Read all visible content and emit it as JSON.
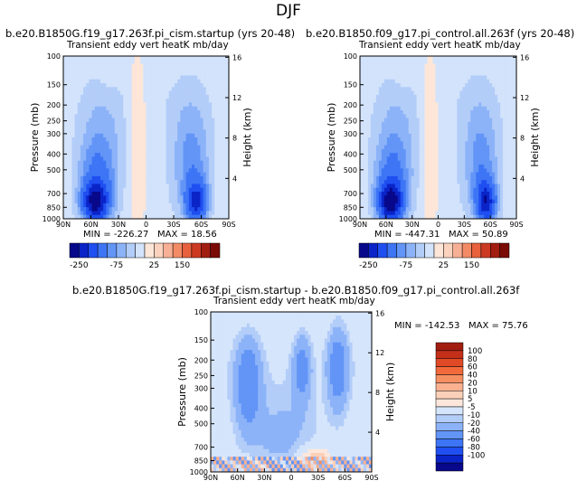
{
  "figure": {
    "season": "DJF"
  },
  "chart_data": [
    {
      "type": "heatmap",
      "title": "b.e20.B1850G.f19_g17.263f.pi_cism.startup (yrs 20-48)",
      "subtitle": "Transient eddy vert heatK mb/day",
      "ylabel": "Pressure (mb)",
      "y2label": "Height (km)",
      "x_ticks": [
        "90N",
        "60N",
        "30N",
        "0",
        "30S",
        "60S",
        "90S"
      ],
      "y_ticks": [
        "100",
        "150",
        "200",
        "250",
        "300",
        "400",
        "500",
        "700",
        "850",
        "1000"
      ],
      "y2_ticks": [
        "16",
        "12",
        "8",
        "4"
      ],
      "stats": {
        "min_label": "MIN =",
        "min": "-226.27",
        "max_label": "MAX =",
        "max": "18.56"
      },
      "colorbar_labels": [
        "-250",
        "-75",
        "25",
        "150"
      ],
      "features": [
        {
          "lat": 55,
          "p": 800,
          "amp": -226.27
        },
        {
          "lat": -55,
          "p": 800,
          "amp": -180
        }
      ]
    },
    {
      "type": "heatmap",
      "title": "b.e20.B1850.f09_g17.pi_control.all.263f (yrs 20-48)",
      "subtitle": "Transient eddy vert heatK mb/day",
      "ylabel": "Pressure (mb)",
      "y2label": "Height (km)",
      "x_ticks": [
        "90N",
        "60N",
        "30N",
        "0",
        "30S",
        "60S",
        "90S"
      ],
      "y_ticks": [
        "100",
        "150",
        "200",
        "250",
        "300",
        "400",
        "500",
        "700",
        "850",
        "1000"
      ],
      "y2_ticks": [
        "16",
        "12",
        "8",
        "4"
      ],
      "stats": {
        "min_label": "MIN =",
        "min": "-447.31",
        "max_label": "MAX =",
        "max": "50.89"
      },
      "colorbar_labels": [
        "-250",
        "-75",
        "25",
        "150"
      ],
      "features": [
        {
          "lat": 55,
          "p": 800,
          "amp": -240
        },
        {
          "lat": -55,
          "p": 800,
          "amp": -200
        }
      ]
    },
    {
      "type": "heatmap",
      "title": "b.e20.B1850G.f19_g17.263f.pi_cism.startup - b.e20.B1850.f09_g17.pi_control.all.263f",
      "subtitle": "Transient eddy vert heatK mb/day",
      "ylabel": "Pressure (mb)",
      "y2label": "Height (km)",
      "x_ticks": [
        "90N",
        "60N",
        "30N",
        "0",
        "30S",
        "60S",
        "90S"
      ],
      "y_ticks": [
        "100",
        "150",
        "200",
        "250",
        "300",
        "400",
        "500",
        "700",
        "850",
        "1000"
      ],
      "y2_ticks": [
        "16",
        "12",
        "8",
        "4"
      ],
      "stats": {
        "min_label": "MIN =",
        "min": "-142.53",
        "max_label": "MAX =",
        "max": "75.76"
      },
      "colorbar_labels": [
        "100",
        "80",
        "60",
        "40",
        "20",
        "10",
        "5",
        "-5",
        "-10",
        "-20",
        "-40",
        "-60",
        "-80",
        "-100"
      ]
    }
  ],
  "colors": {
    "main_scale": [
      "#08088a",
      "#0a24c8",
      "#1f4ff0",
      "#3d75f5",
      "#6395f7",
      "#8cb3f8",
      "#b3cdf9",
      "#d2e3fb",
      "#fde6d8",
      "#fbd2bd",
      "#f7b095",
      "#f38a66",
      "#e8603d",
      "#cc3a21",
      "#a11d10",
      "#7a0a05"
    ],
    "diff_scale_top_to_bottom": [
      "#a11d10",
      "#c42f19",
      "#e04a27",
      "#f26a3c",
      "#f68f62",
      "#f9b190",
      "#fbd0b9",
      "#fde7dc",
      "#d5e5fb",
      "#b3cdf9",
      "#8cb3f8",
      "#6395f7",
      "#3d75f5",
      "#1f4ff0",
      "#0a24c8",
      "#08088a"
    ]
  }
}
